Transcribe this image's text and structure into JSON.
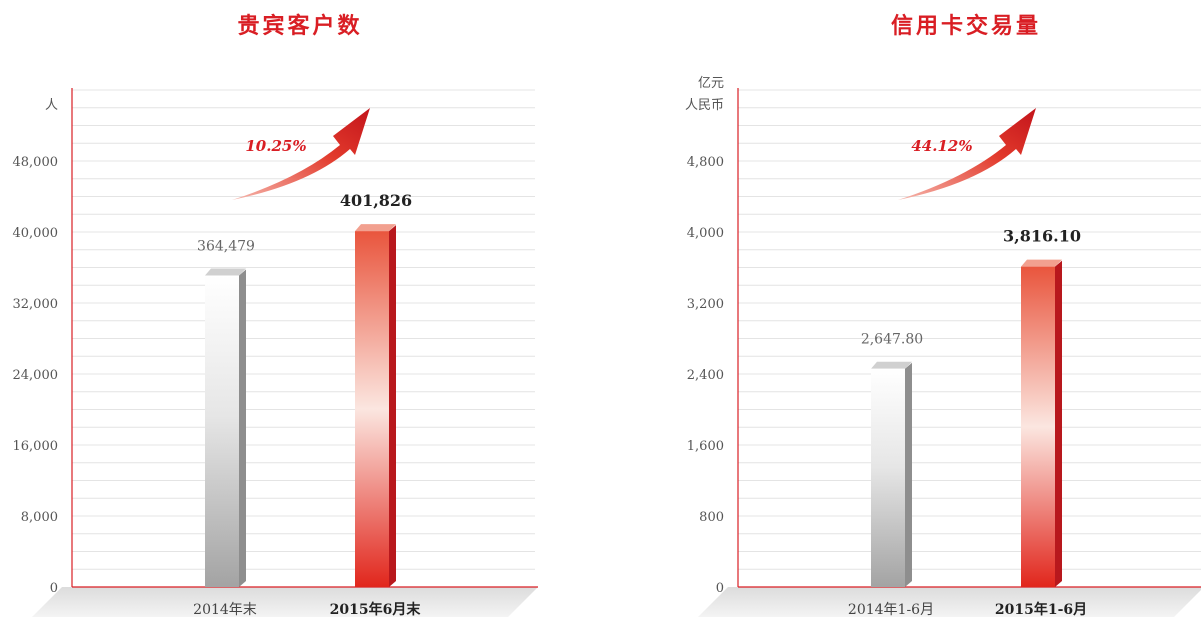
{
  "colors": {
    "accent": "#d91e24",
    "grid": "#e4e4e4",
    "axis": "#d91e24",
    "tick_text": "#555555",
    "bar_prev": "#a3a3a3",
    "bar_curr": "#e1261c",
    "growth_arrow": "#e23a2c"
  },
  "chart_data": [
    {
      "type": "bar",
      "title": "贵宾客户数",
      "unit_label": [
        "人"
      ],
      "categories": [
        "2014年末",
        "2015年6月末"
      ],
      "values": [
        364479,
        401826
      ],
      "value_labels": [
        "364,479",
        "401,826"
      ],
      "y_ticks": [
        0,
        8000,
        16000,
        24000,
        32000,
        40000,
        48000
      ],
      "y_tick_labels": [
        "0",
        "8,000",
        "16,000",
        "24,000",
        "32,000",
        "40,000",
        "48,000"
      ],
      "ylim": [
        0,
        54000
      ],
      "bar_heights_in_axis_units": [
        36000,
        41000
      ],
      "growth_label": "10.25%",
      "grid": true
    },
    {
      "type": "bar",
      "title": "信用卡交易量",
      "unit_label": [
        "亿元",
        "人民币"
      ],
      "categories": [
        "2014年1-6月",
        "2015年1-6月"
      ],
      "values": [
        2647.8,
        3816.1
      ],
      "value_labels": [
        "2,647.80",
        "3,816.10"
      ],
      "y_ticks": [
        0,
        800,
        1600,
        2400,
        3200,
        4000,
        4800
      ],
      "y_tick_labels": [
        "0",
        "800",
        "1,600",
        "2,400",
        "3,200",
        "4,000",
        "4,800"
      ],
      "ylim": [
        0,
        5400
      ],
      "bar_heights_in_axis_units": [
        2550,
        3700
      ],
      "growth_label": "44.12%",
      "grid": true
    }
  ]
}
